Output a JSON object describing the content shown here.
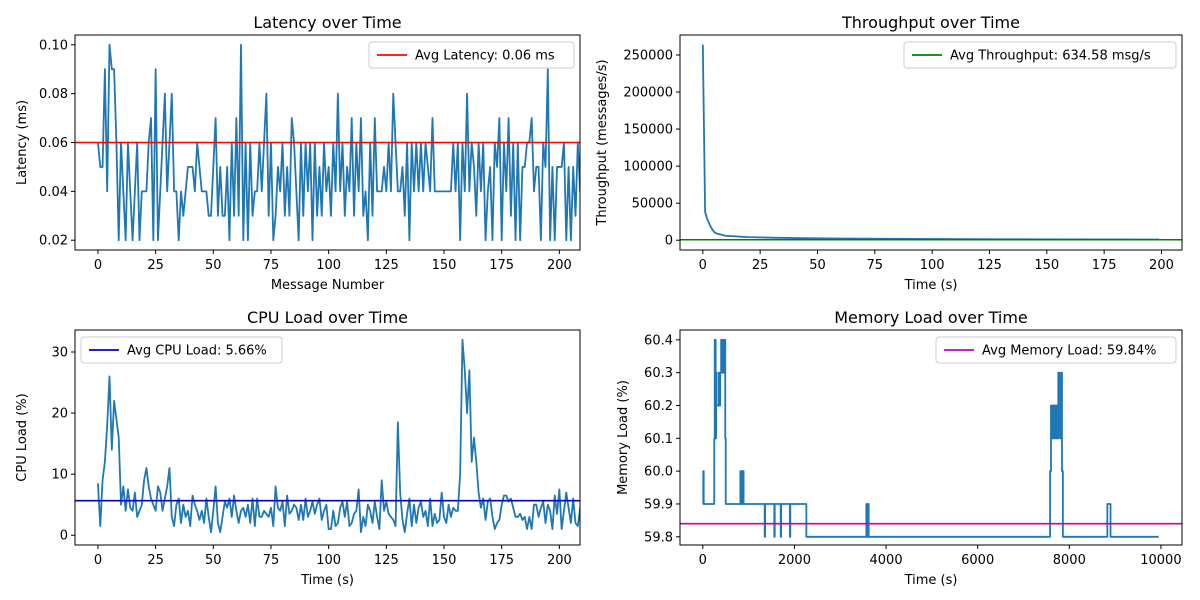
{
  "chart_data": [
    {
      "type": "line",
      "title": "Latency over Time",
      "xlabel": "Message Number",
      "ylabel": "Latency (ms)",
      "xlim": [
        -9.95,
        208.95
      ],
      "ylim": [
        0.016,
        0.104
      ],
      "xticks": [
        0,
        25,
        50,
        75,
        100,
        125,
        150,
        175,
        200
      ],
      "yticks": [
        0.02,
        0.04,
        0.06,
        0.08,
        0.1
      ],
      "ytick_labels": [
        "0.02",
        "0.04",
        "0.06",
        "0.08",
        "0.10"
      ],
      "legend_position": "top-right",
      "series": [
        {
          "color": "#1f77b4",
          "x_start": 0,
          "x_step": 1,
          "values": [
            0.06,
            0.05,
            0.05,
            0.09,
            0.04,
            0.1,
            0.09,
            0.09,
            0.06,
            0.02,
            0.06,
            0.04,
            0.02,
            0.06,
            0.04,
            0.02,
            0.04,
            0.06,
            0.02,
            0.04,
            0.04,
            0.04,
            0.06,
            0.07,
            0.02,
            0.09,
            0.02,
            0.04,
            0.06,
            0.08,
            0.04,
            0.06,
            0.08,
            0.04,
            0.04,
            0.02,
            0.04,
            0.03,
            0.04,
            0.05,
            0.05,
            0.05,
            0.04,
            0.06,
            0.05,
            0.04,
            0.04,
            0.04,
            0.03,
            0.03,
            0.05,
            0.07,
            0.03,
            0.05,
            0.03,
            0.03,
            0.05,
            0.02,
            0.06,
            0.03,
            0.07,
            0.03,
            0.1,
            0.02,
            0.06,
            0.02,
            0.06,
            0.03,
            0.04,
            0.04,
            0.06,
            0.04,
            0.06,
            0.08,
            0.03,
            0.06,
            0.02,
            0.03,
            0.05,
            0.04,
            0.06,
            0.03,
            0.05,
            0.03,
            0.07,
            0.06,
            0.04,
            0.02,
            0.06,
            0.03,
            0.06,
            0.04,
            0.06,
            0.02,
            0.06,
            0.03,
            0.05,
            0.03,
            0.06,
            0.04,
            0.05,
            0.03,
            0.06,
            0.04,
            0.08,
            0.04,
            0.06,
            0.03,
            0.05,
            0.04,
            0.07,
            0.03,
            0.06,
            0.04,
            0.07,
            0.03,
            0.04,
            0.02,
            0.06,
            0.03,
            0.07,
            0.04,
            0.04,
            0.04,
            0.05,
            0.04,
            0.06,
            0.04,
            0.08,
            0.06,
            0.04,
            0.04,
            0.05,
            0.03,
            0.06,
            0.02,
            0.06,
            0.04,
            0.06,
            0.04,
            0.06,
            0.04,
            0.06,
            0.05,
            0.04,
            0.07,
            0.04,
            0.04,
            0.04,
            0.04,
            0.04,
            0.04,
            0.04,
            0.04,
            0.06,
            0.04,
            0.06,
            0.02,
            0.06,
            0.04,
            0.08,
            0.04,
            0.06,
            0.05,
            0.03,
            0.06,
            0.04,
            0.06,
            0.02,
            0.04,
            0.05,
            0.02,
            0.06,
            0.05,
            0.07,
            0.02,
            0.06,
            0.04,
            0.07,
            0.03,
            0.06,
            0.02,
            0.06,
            0.02,
            0.05,
            0.05,
            0.06,
            0.06,
            0.07,
            0.04,
            0.05,
            0.05,
            0.02,
            0.06,
            0.05,
            0.09,
            0.02,
            0.05,
            0.02,
            0.05,
            0.05,
            0.05,
            0.06,
            0.02,
            0.05,
            0.02,
            0.05,
            0.03,
            0.06,
            0.04,
            0.05,
            0.06
          ]
        }
      ],
      "hline": {
        "y": 0.06,
        "color": "#ff0000",
        "legend": "Avg Latency: 0.06 ms"
      }
    },
    {
      "type": "line",
      "title": "Throughput over Time",
      "xlabel": "Time (s)",
      "ylabel": "Throughput (messages/s)",
      "xlim": [
        -9.95,
        208.95
      ],
      "ylim": [
        -13200,
        277000
      ],
      "xticks": [
        0,
        25,
        50,
        75,
        100,
        125,
        150,
        175,
        200
      ],
      "yticks": [
        0,
        50000,
        100000,
        150000,
        200000,
        250000
      ],
      "ytick_labels": [
        "0",
        "50000",
        "100000",
        "150000",
        "200000",
        "250000"
      ],
      "legend_position": "top-right",
      "series": [
        {
          "color": "#1f77b4",
          "x": [
            0,
            1,
            2,
            3,
            4,
            5,
            6,
            8,
            10,
            15,
            20,
            30,
            40,
            60,
            80,
            100,
            130,
            160,
            199
          ],
          "values": [
            264000,
            38000,
            28000,
            21000,
            15000,
            11000,
            9000,
            7500,
            6000,
            5000,
            4200,
            3400,
            2900,
            2300,
            1900,
            1600,
            1300,
            1100,
            900
          ]
        }
      ],
      "hline": {
        "y": 634.58,
        "color": "#008000",
        "legend": "Avg Throughput: 634.58 msg/s"
      }
    },
    {
      "type": "line",
      "title": "CPU Load over Time",
      "xlabel": "Time (s)",
      "ylabel": "CPU Load (%)",
      "xlim": [
        -9.95,
        208.95
      ],
      "ylim": [
        -1.6,
        33.6
      ],
      "xticks": [
        0,
        25,
        50,
        75,
        100,
        125,
        150,
        175,
        200
      ],
      "yticks": [
        0,
        10,
        20,
        30
      ],
      "ytick_labels": [
        "0",
        "10",
        "20",
        "30"
      ],
      "legend_position": "top-left",
      "series": [
        {
          "color": "#1f77b4",
          "x_start": 0,
          "x_step": 1,
          "values": [
            8.5,
            1.5,
            9,
            12,
            18,
            26,
            14,
            22,
            19,
            16,
            5,
            8,
            4,
            7.5,
            4.5,
            4,
            7,
            3,
            4,
            5,
            9,
            11,
            8,
            6,
            5,
            4,
            8,
            7,
            4,
            6,
            8,
            11,
            3,
            1.5,
            5,
            6,
            2,
            5,
            3,
            4,
            1.5,
            6.5,
            5,
            4,
            2.5,
            4,
            2,
            6,
            3,
            0.5,
            4,
            8,
            2,
            0.5,
            3,
            5.5,
            4.5,
            6,
            3,
            6.5,
            4,
            2,
            4,
            4.5,
            3,
            5,
            2,
            6,
            1.5,
            6,
            3,
            3,
            4,
            3.5,
            3,
            4.5,
            1.5,
            8,
            4.5,
            4,
            5.5,
            1.5,
            6.5,
            3.5,
            4,
            5,
            4.5,
            2.5,
            5,
            2.5,
            6,
            3,
            4,
            5.5,
            3.5,
            5,
            6,
            2.5,
            4,
            5,
            1,
            1,
            4,
            1.5,
            2,
            4.5,
            5.5,
            3,
            5.5,
            1.5,
            2,
            3.5,
            4,
            7.5,
            0.5,
            3,
            1.5,
            5,
            4,
            2,
            5.5,
            3,
            1,
            9,
            4,
            5.5,
            3.5,
            3,
            2.5,
            1.5,
            18.5,
            7,
            2.5,
            0.5,
            3.5,
            6,
            1.5,
            5,
            2,
            4.5,
            5.5,
            3,
            4,
            1.5,
            6,
            1.5,
            3.5,
            2,
            2.5,
            7,
            3,
            2,
            5,
            3,
            4.5,
            4,
            4,
            10,
            32,
            27,
            20,
            27,
            12,
            16,
            12,
            7,
            4.5,
            6,
            2.5,
            5.5,
            6,
            3,
            1,
            2,
            2.5,
            5,
            6.5,
            6.5,
            5.5,
            6,
            4.5,
            3,
            3,
            3.5,
            2.5,
            3,
            1,
            3,
            1,
            5,
            5,
            3,
            4.5,
            5.5,
            2,
            5,
            4,
            1,
            6.5,
            3.5,
            7.5,
            1,
            4,
            7,
            4.5,
            2,
            6,
            2,
            1.5,
            4.5,
            2,
            6,
            2.5,
            7,
            3.5,
            1.5,
            6,
            2,
            5,
            7.5
          ]
        }
      ],
      "hline": {
        "y": 5.66,
        "color": "#0000cc",
        "legend": "Avg CPU Load: 5.66%"
      }
    },
    {
      "type": "line",
      "title": "Memory Load over Time",
      "xlabel": "Time (s)",
      "ylabel": "Memory Load (%)",
      "xlim": [
        -498,
        10460
      ],
      "ylim": [
        59.775,
        60.43
      ],
      "xticks": [
        0,
        2000,
        4000,
        6000,
        8000,
        10000
      ],
      "yticks": [
        59.8,
        59.9,
        60.0,
        60.1,
        60.2,
        60.3,
        60.4
      ],
      "ytick_labels": [
        "59.8",
        "59.9",
        "60.0",
        "60.1",
        "60.2",
        "60.3",
        "60.4"
      ],
      "legend_position": "top-right",
      "series": [
        {
          "color": "#1f77b4",
          "drawstyle": "steps",
          "x": [
            0,
            10,
            20,
            30,
            40,
            250,
            260,
            280,
            290,
            300,
            320,
            350,
            360,
            380,
            400,
            420,
            440,
            450,
            460,
            470,
            480,
            490,
            500,
            520,
            540,
            820,
            830,
            840,
            850,
            860,
            870,
            880,
            890,
            900,
            1350,
            1360,
            1560,
            1570,
            1700,
            1710,
            1900,
            1910,
            2000,
            2260,
            3570,
            3580,
            3590,
            3600,
            3610,
            3620,
            3630,
            7580,
            7600,
            7620,
            7640,
            7660,
            7680,
            7700,
            7720,
            7740,
            7760,
            7780,
            7800,
            7820,
            7840,
            7860,
            8830,
            8840,
            8900,
            9950
          ],
          "values": [
            59.9,
            60.0,
            59.9,
            59.9,
            59.9,
            60.1,
            60.4,
            60.1,
            60.3,
            60.2,
            60.2,
            60.3,
            60.2,
            60.3,
            60.4,
            60.3,
            60.4,
            60.3,
            60.4,
            60.3,
            60.4,
            60.1,
            59.9,
            59.9,
            59.9,
            60.0,
            59.9,
            60.0,
            59.9,
            60.0,
            59.9,
            60.0,
            59.9,
            59.9,
            59.8,
            59.9,
            59.8,
            59.9,
            59.8,
            59.9,
            59.8,
            59.9,
            59.9,
            59.8,
            59.9,
            59.8,
            59.9,
            59.8,
            59.9,
            59.8,
            59.8,
            60.0,
            60.2,
            60.1,
            60.2,
            60.1,
            60.2,
            60.1,
            60.2,
            60.1,
            60.3,
            60.2,
            60.1,
            60.3,
            60.0,
            59.8,
            59.9,
            59.9,
            59.8,
            59.8
          ]
        }
      ],
      "hline": {
        "y": 59.84,
        "color": "#bf00bf",
        "legend": "Avg Memory Load: 59.84%"
      }
    }
  ]
}
